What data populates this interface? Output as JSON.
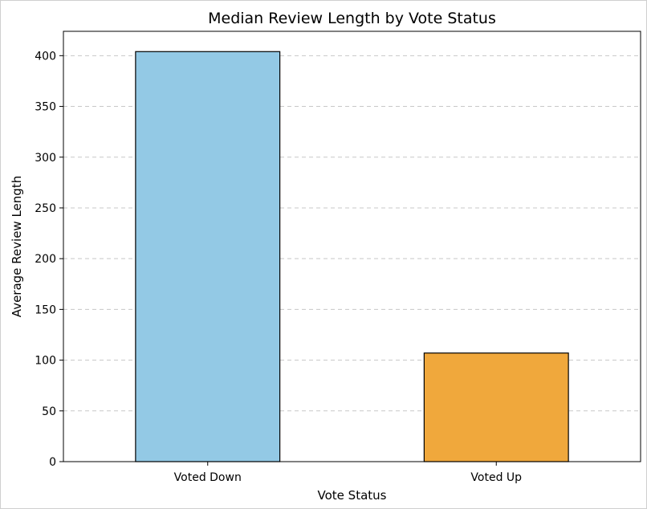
{
  "chart_data": {
    "type": "bar",
    "title": "Median Review Length by Vote Status",
    "xlabel": "Vote Status",
    "ylabel": "Average Review Length",
    "categories": [
      "Voted Down",
      "Voted Up"
    ],
    "values": [
      404,
      107
    ],
    "ylim": [
      0,
      424
    ],
    "yticks": [
      0,
      50,
      100,
      150,
      200,
      250,
      300,
      350,
      400
    ],
    "grid": "y-dashed",
    "colors": [
      "#93c9e5",
      "#f0a83c"
    ],
    "edge_color": "#000000",
    "grid_color": "#c8c8c8"
  }
}
